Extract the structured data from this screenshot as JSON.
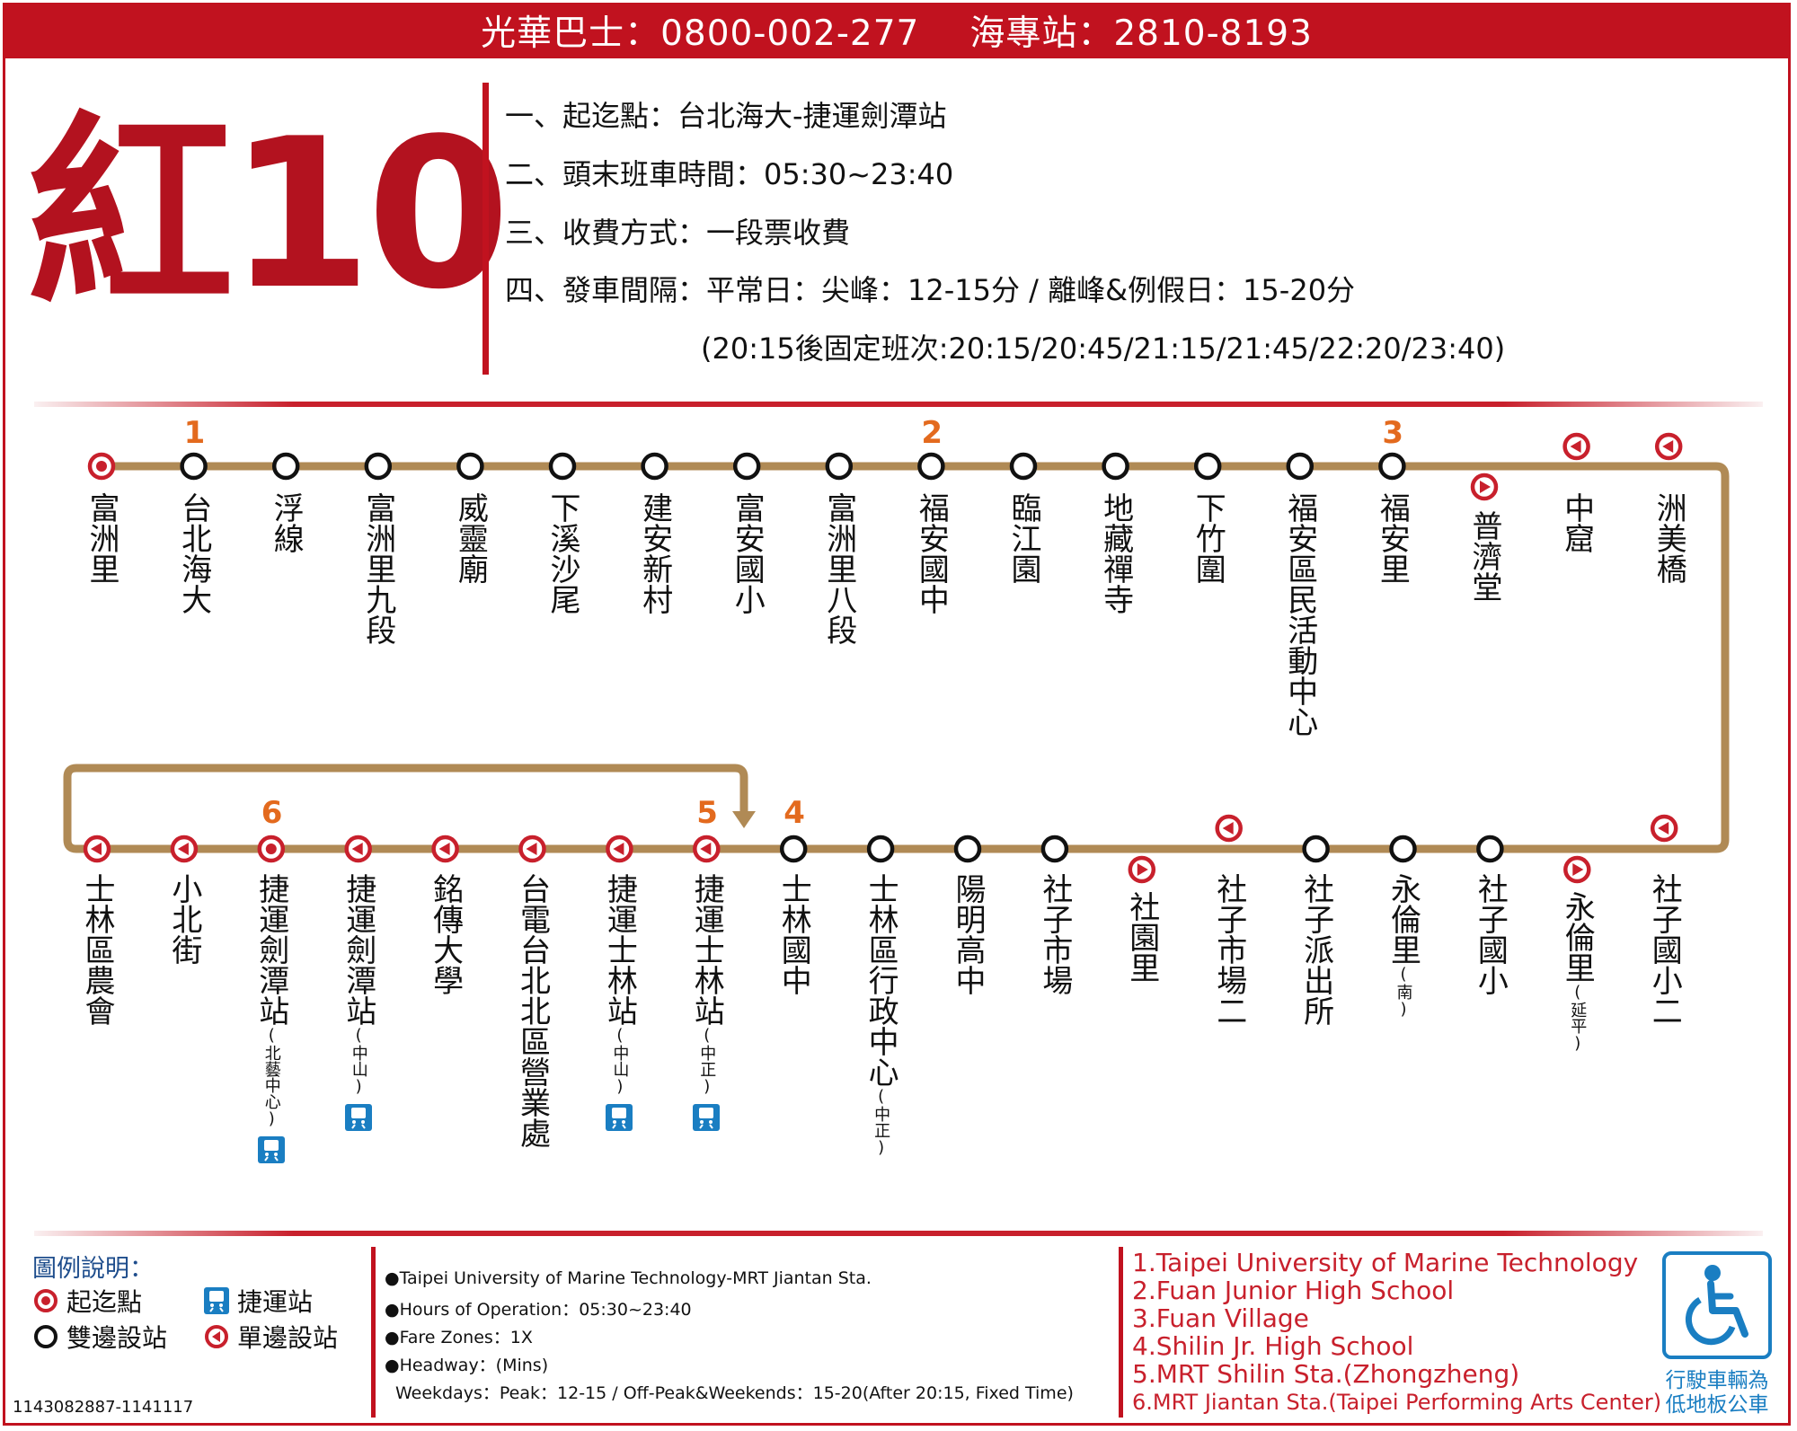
{
  "header": {
    "hotline": "光華巴士：0800-002-277",
    "station": "海專站：2810-8193"
  },
  "route_number": "紅10",
  "info": [
    "一、起迄點：台北海大-捷運劍潭站",
    "二、頭末班車時間：05:30~23:40",
    "三、收費方式：一段票收費",
    "四、發車間隔：平常日：尖峰：12-15分 / 離峰&例假日：15-20分",
    "(20:15後固定班次:20:15/20:45/21:15/21:45/22:20/23:40)"
  ],
  "top_stops": [
    {
      "name": "富洲里",
      "type": "terminal",
      "num": ""
    },
    {
      "name": "台北海大",
      "type": "both",
      "num": "1"
    },
    {
      "name": "浮線",
      "type": "both",
      "num": ""
    },
    {
      "name": "富洲里九段",
      "type": "both",
      "num": ""
    },
    {
      "name": "威靈廟",
      "type": "both",
      "num": ""
    },
    {
      "name": "下溪沙尾",
      "type": "both",
      "num": ""
    },
    {
      "name": "建安新村",
      "type": "both",
      "num": ""
    },
    {
      "name": "富安國小",
      "type": "both",
      "num": ""
    },
    {
      "name": "富洲里八段",
      "type": "both",
      "num": ""
    },
    {
      "name": "福安國中",
      "type": "both",
      "num": "2"
    },
    {
      "name": "臨江園",
      "type": "both",
      "num": ""
    },
    {
      "name": "地藏禪寺",
      "type": "both",
      "num": ""
    },
    {
      "name": "下竹圍",
      "type": "both",
      "num": ""
    },
    {
      "name": "福安區民活動中心",
      "type": "both",
      "num": ""
    },
    {
      "name": "福安里",
      "type": "both",
      "num": "3"
    },
    {
      "name": "普濟堂",
      "type": "single-in",
      "num": ""
    },
    {
      "name": "中窟",
      "type": "single-out",
      "num": ""
    },
    {
      "name": "洲美橋",
      "type": "single-out",
      "num": ""
    }
  ],
  "bottom_stops": [
    {
      "name": "士林區農會",
      "sub": "",
      "type": "single-out",
      "num": "",
      "mrt": false
    },
    {
      "name": "小北街",
      "sub": "",
      "type": "single-out",
      "num": "",
      "mrt": false
    },
    {
      "name": "捷運劍潭站",
      "sub": "(北藝中心)",
      "type": "terminal",
      "num": "6",
      "mrt": true
    },
    {
      "name": "捷運劍潭站",
      "sub": "(中山)",
      "type": "single-out",
      "num": "",
      "mrt": true
    },
    {
      "name": "銘傳大學",
      "sub": "",
      "type": "single-out",
      "num": "",
      "mrt": false
    },
    {
      "name": "台電台北北區營業處",
      "sub": "",
      "type": "single-out",
      "num": "",
      "mrt": false
    },
    {
      "name": "捷運士林站",
      "sub": "(中山)",
      "type": "single-out",
      "num": "",
      "mrt": true
    },
    {
      "name": "捷運士林站",
      "sub": "(中正)",
      "type": "single-out",
      "num": "5",
      "mrt": true
    },
    {
      "name": "士林國中",
      "sub": "",
      "type": "both",
      "num": "4",
      "mrt": false
    },
    {
      "name": "士林區行政中心",
      "sub": "(中正)",
      "type": "both",
      "num": "",
      "mrt": false
    },
    {
      "name": "陽明高中",
      "sub": "",
      "type": "both",
      "num": "",
      "mrt": false
    },
    {
      "name": "社子市場",
      "sub": "",
      "type": "both",
      "num": "",
      "mrt": false
    },
    {
      "name": "社園里",
      "sub": "",
      "type": "single-in",
      "num": "",
      "mrt": false
    },
    {
      "name": "社子市場二",
      "sub": "",
      "type": "single-out",
      "num": "",
      "mrt": false
    },
    {
      "name": "社子派出所",
      "sub": "",
      "type": "both",
      "num": "",
      "mrt": false
    },
    {
      "name": "永倫里",
      "sub": "(南)",
      "type": "both",
      "num": "",
      "mrt": false
    },
    {
      "name": "社子國小",
      "sub": "",
      "type": "both",
      "num": "",
      "mrt": false
    },
    {
      "name": "永倫里",
      "sub": "(延平)",
      "type": "single-in",
      "num": "",
      "mrt": false
    },
    {
      "name": "社子國小二",
      "sub": "",
      "type": "single-out",
      "num": "",
      "mrt": false
    }
  ],
  "legend": {
    "title": "圖例說明：",
    "terminal": "起迄點",
    "mrt": "捷運站",
    "both": "雙邊設站",
    "single": "單邊設站"
  },
  "english_info": [
    "●Taipei  University of Marine Technology-MRT Jiantan Sta.",
    "●Hours of Operation：05:30~23:40",
    "●Fare Zones：1X",
    "●Headway：(Mins)",
    "Weekdays：Peak：12-15 / Off-Peak&Weekends：15-20(After 20:15, Fixed Time)"
  ],
  "stop_references": [
    "1.Taipei  University of Marine Technology",
    "2.Fuan Junior High School",
    "3.Fuan Village",
    "4.Shilin Jr. High School",
    "5.MRT Shilin Sta.(Zhongzheng)",
    "6.MRT Jiantan Sta.(Taipei Performing Arts Center)"
  ],
  "doc_code": "1143082887-1141117",
  "low_floor": "行駛車輛為低地板公車",
  "colors": {
    "red": "#c1121f",
    "route": "#b08a55",
    "orange": "#e36a1e",
    "mrt_blue": "#1a7ec2"
  }
}
